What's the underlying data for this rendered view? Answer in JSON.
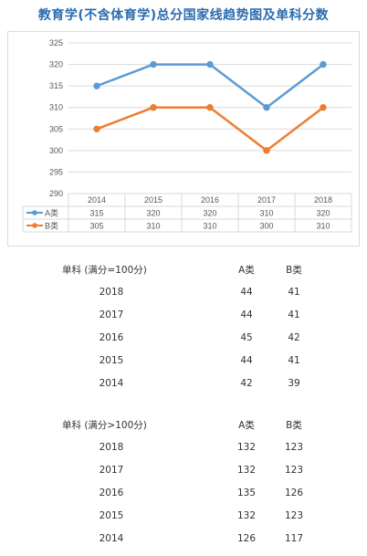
{
  "title": "教育学(不含体育学)总分国家线趋势图及单科分数",
  "chart_data": {
    "type": "line",
    "categories": [
      "2014",
      "2015",
      "2016",
      "2017",
      "2018"
    ],
    "series": [
      {
        "name": "A类",
        "values": [
          315,
          320,
          320,
          310,
          320
        ],
        "color": "#5b9bd5"
      },
      {
        "name": "B类",
        "values": [
          305,
          310,
          310,
          300,
          310
        ],
        "color": "#ed7d31"
      }
    ],
    "ylim": [
      290,
      325
    ],
    "yticks": [
      "325",
      "320",
      "315",
      "310",
      "305",
      "300",
      "295",
      "290"
    ],
    "grid": true,
    "legend": "data-table",
    "data_table": true
  },
  "table1": {
    "header": [
      "单科 (满分=100分)",
      "A类",
      "B类"
    ],
    "rows": [
      [
        "2018",
        "44",
        "41"
      ],
      [
        "2017",
        "44",
        "41"
      ],
      [
        "2016",
        "45",
        "42"
      ],
      [
        "2015",
        "44",
        "41"
      ],
      [
        "2014",
        "42",
        "39"
      ]
    ]
  },
  "table2": {
    "header": [
      "单科 (满分>100分)",
      "A类",
      "B类"
    ],
    "rows": [
      [
        "2018",
        "132",
        "123"
      ],
      [
        "2017",
        "132",
        "123"
      ],
      [
        "2016",
        "135",
        "126"
      ],
      [
        "2015",
        "132",
        "123"
      ],
      [
        "2014",
        "126",
        "117"
      ]
    ]
  }
}
